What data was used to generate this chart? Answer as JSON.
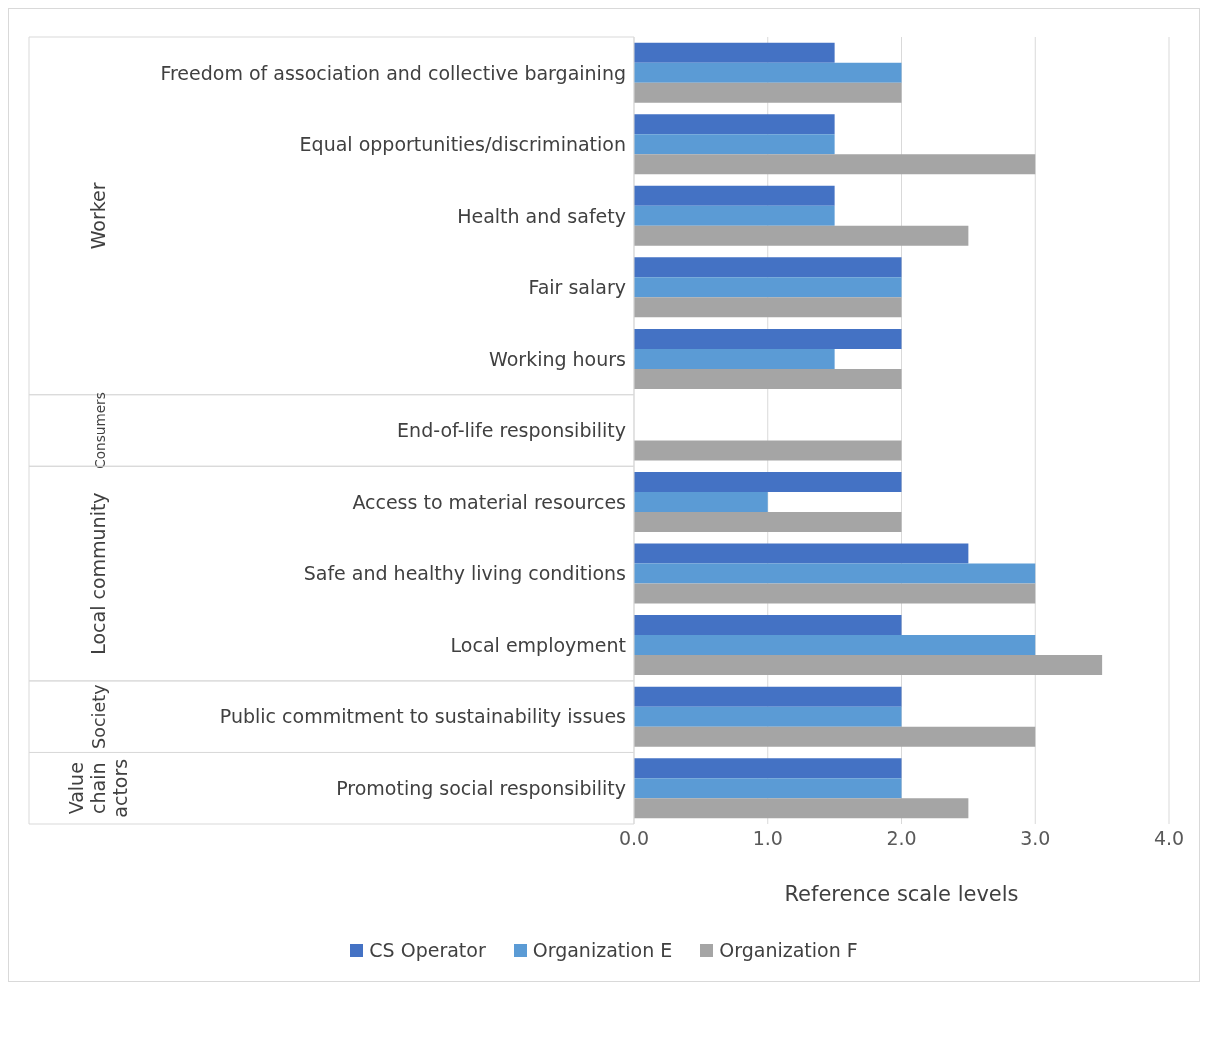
{
  "chart_data": {
    "type": "bar",
    "orientation": "horizontal",
    "xlabel": "Reference scale levels",
    "categories": [
      "Freedom of association and collective bargaining",
      "Equal opportunities/discrimination",
      "Health and safety",
      "Fair salary",
      "Working hours",
      "End-of-life responsibility",
      "Access to material resources",
      "Safe and healthy living conditions",
      "Local employment",
      "Public commitment to sustainability issues",
      "Promoting social responsibility"
    ],
    "series": [
      {
        "name": "CS Operator",
        "color": "#4472c4",
        "values": [
          1.5,
          1.5,
          1.5,
          2,
          2,
          null,
          2,
          2.5,
          2,
          2,
          2
        ]
      },
      {
        "name": "Organization E",
        "color": "#5b9bd5",
        "values": [
          2,
          1.5,
          1.5,
          2,
          1.5,
          null,
          1,
          3,
          3,
          2,
          2
        ]
      },
      {
        "name": "Organization F",
        "color": "#a5a5a5",
        "values": [
          2,
          3,
          2.5,
          2,
          2,
          2,
          2,
          3,
          3.5,
          3,
          2.5
        ]
      }
    ],
    "xlim": [
      0,
      4
    ],
    "xticks": [
      {
        "value": 0,
        "label": "0.0"
      },
      {
        "value": 1,
        "label": "1.0"
      },
      {
        "value": 2,
        "label": "2.0"
      },
      {
        "value": 3,
        "label": "3.0"
      },
      {
        "value": 4,
        "label": "4.0"
      }
    ],
    "annotations": [
      "Worker",
      "Consumers",
      "Local community",
      "Society",
      "Value chain actors"
    ],
    "grid": "x",
    "legend": "bottom"
  }
}
